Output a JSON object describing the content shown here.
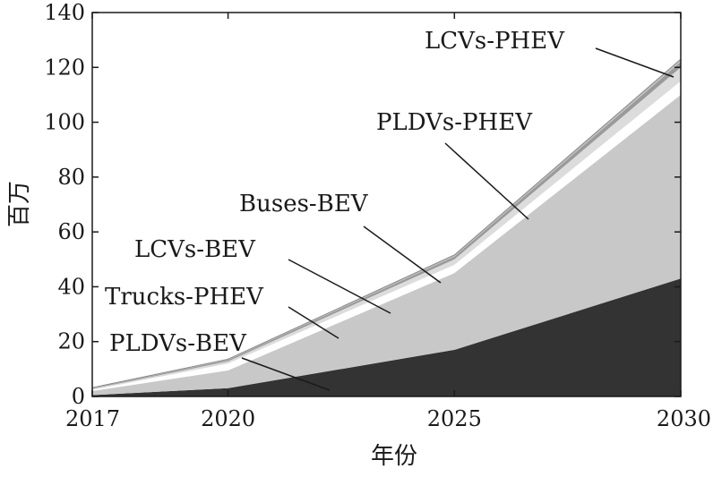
{
  "chart_data": {
    "type": "area",
    "stacked": true,
    "xlabel": "年份",
    "ylabel": "百万",
    "ylim": [
      0,
      140
    ],
    "yticks": [
      0,
      20,
      40,
      60,
      80,
      100,
      120,
      140
    ],
    "x": [
      2017,
      2020,
      2025,
      2030
    ],
    "x_tick_labels": [
      "2017",
      "2020",
      "2025",
      "2030"
    ],
    "grid": false,
    "legend": "inline labels with leader lines",
    "series": [
      {
        "name": "PLDVs-BEV",
        "values": [
          0.5,
          3,
          17,
          43
        ],
        "color": "#333333"
      },
      {
        "name": "Trucks-PHEV",
        "values": [
          1.5,
          6.5,
          28,
          67
        ],
        "color": "#c8c8c8"
      },
      {
        "name": "LCVs-BEV",
        "values": [
          0.4,
          2.5,
          3,
          5
        ],
        "color": "#ffffff"
      },
      {
        "name": "Buses-BEV",
        "values": [
          0.4,
          0.8,
          2,
          5
        ],
        "color": "#dcdcdc"
      },
      {
        "name": "PLDVs-PHEV",
        "values": [
          0.2,
          0.5,
          1,
          2
        ],
        "color": "#9a9a9a"
      },
      {
        "name": "LCVs-PHEV",
        "values": [
          0.2,
          0.3,
          0.6,
          1
        ],
        "color": "#c0c0c0"
      }
    ]
  }
}
